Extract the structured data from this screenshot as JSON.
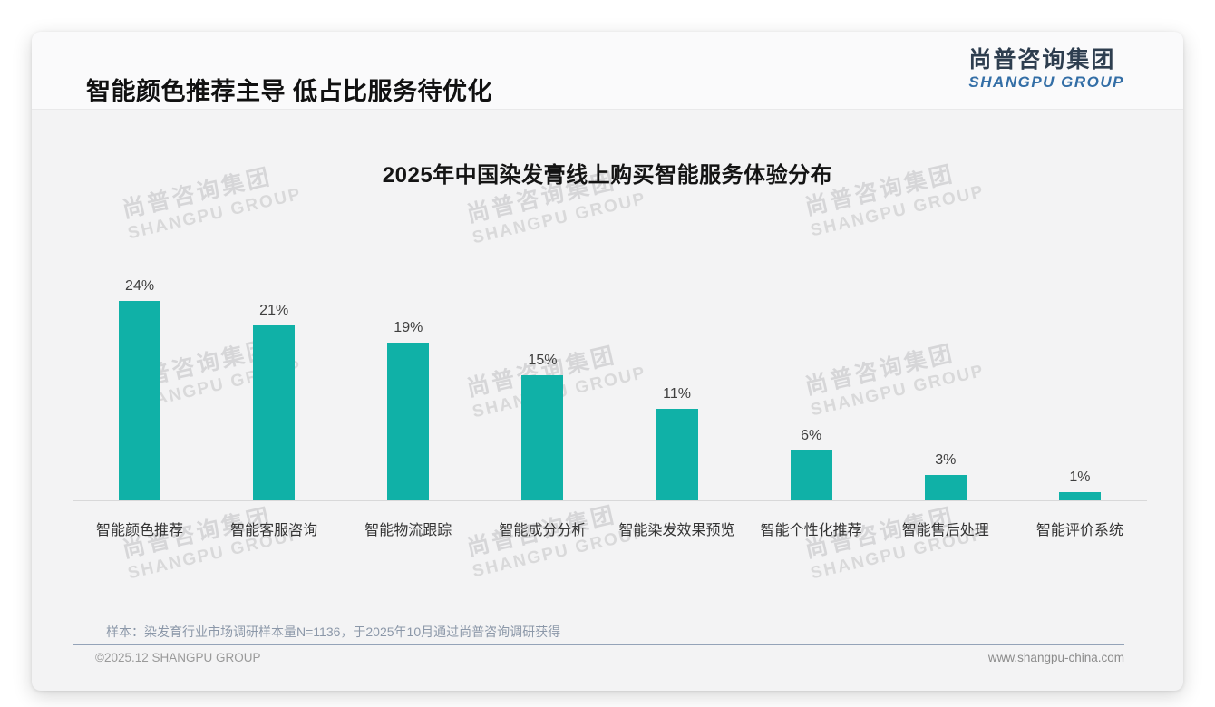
{
  "page": {
    "title": "智能颜色推荐主导 低占比服务待优化",
    "logo": {
      "cn": "尚普咨询集团",
      "en": "SHANGPU GROUP"
    },
    "watermark": {
      "cn": "尚普咨询集团",
      "en": "SHANGPU GROUP"
    },
    "footnote": "样本：染发育行业市场调研样本量N=1136，于2025年10月通过尚普咨询调研获得",
    "footer_left": "©2025.12 SHANGPU GROUP",
    "footer_right": "www.shangpu-china.com"
  },
  "chart_data": {
    "type": "bar",
    "title": "2025年中国染发膏线上购买智能服务体验分布",
    "categories": [
      "智能颜色推荐",
      "智能客服咨询",
      "智能物流跟踪",
      "智能成分分析",
      "智能染发效果预览",
      "智能个性化推荐",
      "智能售后处理",
      "智能评价系统"
    ],
    "values": [
      24,
      21,
      19,
      15,
      11,
      6,
      3,
      1
    ],
    "data_labels": [
      "24%",
      "21%",
      "19%",
      "15%",
      "11%",
      "6%",
      "3%",
      "1%"
    ],
    "unit": "%",
    "bar_color": "#10b1a7",
    "value_label_color": "#3f3f3f",
    "xlabel": "",
    "ylabel": "",
    "ylim": [
      0,
      26
    ],
    "grid": false,
    "legend": "none",
    "axis_line_color": "#d8d8d9"
  }
}
